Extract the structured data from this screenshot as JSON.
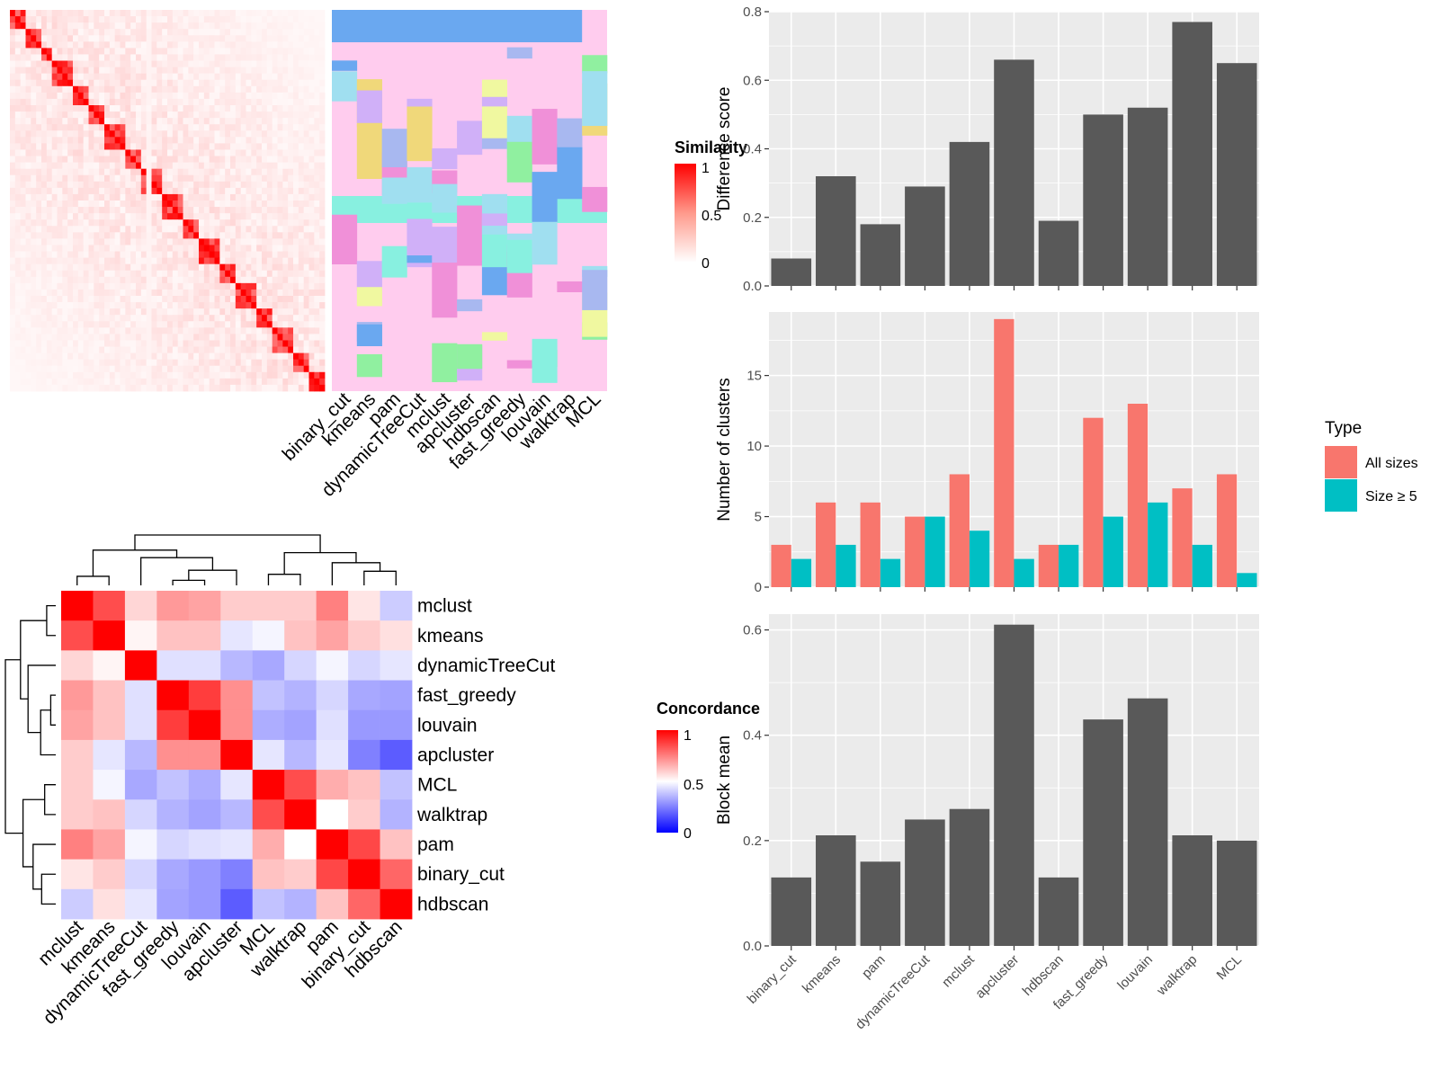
{
  "methods": [
    "binary_cut",
    "kmeans",
    "pam",
    "dynamicTreeCut",
    "mclust",
    "apcluster",
    "hdbscan",
    "fast_greedy",
    "louvain",
    "walktrap",
    "MCL"
  ],
  "colors": {
    "panel_bg": "#ebebeb",
    "grid": "#ffffff",
    "bar": "#595959",
    "all_sizes": "#f8766d",
    "size5": "#00bfc4",
    "similarity_high": "#ff0000",
    "concordance_low": "#0000ff",
    "label_bg": "#ffccee"
  },
  "similarity_legend": {
    "title": "Similarity",
    "ticks": [
      "1",
      "0.5",
      "0"
    ]
  },
  "concordance_legend": {
    "title": "Concordance",
    "ticks": [
      "1",
      "0.5",
      "0"
    ]
  },
  "concordance_order": [
    "mclust",
    "kmeans",
    "dynamicTreeCut",
    "fast_greedy",
    "louvain",
    "apcluster",
    "MCL",
    "walktrap",
    "pam",
    "binary_cut",
    "hdbscan"
  ],
  "concordance_matrix": [
    [
      1.0,
      0.85,
      0.58,
      0.7,
      0.68,
      0.6,
      0.6,
      0.6,
      0.75,
      0.55,
      0.4
    ],
    [
      0.85,
      1.0,
      0.52,
      0.62,
      0.62,
      0.45,
      0.48,
      0.62,
      0.68,
      0.6,
      0.56
    ],
    [
      0.58,
      0.52,
      1.0,
      0.44,
      0.44,
      0.36,
      0.33,
      0.42,
      0.48,
      0.42,
      0.45
    ],
    [
      0.7,
      0.62,
      0.44,
      1.0,
      0.88,
      0.72,
      0.38,
      0.35,
      0.42,
      0.33,
      0.32
    ],
    [
      0.68,
      0.62,
      0.44,
      0.88,
      1.0,
      0.72,
      0.34,
      0.32,
      0.44,
      0.3,
      0.3
    ],
    [
      0.6,
      0.45,
      0.36,
      0.72,
      0.72,
      1.0,
      0.45,
      0.36,
      0.45,
      0.25,
      0.18
    ],
    [
      0.6,
      0.48,
      0.33,
      0.38,
      0.34,
      0.45,
      1.0,
      0.85,
      0.66,
      0.62,
      0.38
    ],
    [
      0.6,
      0.62,
      0.42,
      0.35,
      0.32,
      0.36,
      0.85,
      1.0,
      0.5,
      0.6,
      0.35
    ],
    [
      0.75,
      0.68,
      0.48,
      0.42,
      0.44,
      0.45,
      0.66,
      0.5,
      1.0,
      0.86,
      0.62
    ],
    [
      0.55,
      0.6,
      0.42,
      0.33,
      0.3,
      0.25,
      0.62,
      0.6,
      0.86,
      1.0,
      0.8
    ],
    [
      0.4,
      0.56,
      0.45,
      0.32,
      0.3,
      0.18,
      0.38,
      0.35,
      0.62,
      0.8,
      1.0
    ]
  ],
  "chart_data": [
    {
      "type": "heatmap",
      "name": "similarity matrix with cluster labels",
      "legend": "Similarity",
      "columns": [
        "binary_cut",
        "kmeans",
        "pam",
        "dynamicTreeCut",
        "mclust",
        "apcluster",
        "hdbscan",
        "fast_greedy",
        "louvain",
        "walktrap",
        "MCL"
      ],
      "range": [
        0,
        1
      ]
    },
    {
      "type": "heatmap",
      "name": "concordance",
      "legend": "Concordance",
      "categories": [
        "mclust",
        "kmeans",
        "dynamicTreeCut",
        "fast_greedy",
        "louvain",
        "apcluster",
        "MCL",
        "walktrap",
        "pam",
        "binary_cut",
        "hdbscan"
      ],
      "range": [
        0,
        1
      ]
    },
    {
      "type": "bar",
      "categories": [
        "binary_cut",
        "kmeans",
        "pam",
        "dynamicTreeCut",
        "mclust",
        "apcluster",
        "hdbscan",
        "fast_greedy",
        "louvain",
        "walktrap",
        "MCL"
      ],
      "values": [
        0.08,
        0.32,
        0.18,
        0.29,
        0.42,
        0.66,
        0.19,
        0.5,
        0.52,
        0.77,
        0.65
      ],
      "ylabel": "Difference score",
      "ylim": [
        0,
        0.8
      ],
      "yticks": [
        "0.0",
        "0.2",
        "0.4",
        "0.6",
        "0.8"
      ],
      "grid": true
    },
    {
      "type": "bar",
      "categories": [
        "binary_cut",
        "kmeans",
        "pam",
        "dynamicTreeCut",
        "mclust",
        "apcluster",
        "hdbscan",
        "fast_greedy",
        "louvain",
        "walktrap",
        "MCL"
      ],
      "series": [
        {
          "name": "All sizes",
          "values": [
            3,
            6,
            6,
            5,
            8,
            19,
            3,
            12,
            13,
            7,
            8
          ]
        },
        {
          "name": "Size ≥ 5",
          "values": [
            2,
            3,
            2,
            5,
            4,
            2,
            3,
            5,
            6,
            3,
            1
          ]
        }
      ],
      "ylabel": "Number of clusters",
      "ylim": [
        0,
        19.5
      ],
      "yticks": [
        "0",
        "5",
        "10",
        "15"
      ],
      "legend_title": "Type",
      "legend_position": "right",
      "grid": true
    },
    {
      "type": "bar",
      "categories": [
        "binary_cut",
        "kmeans",
        "pam",
        "dynamicTreeCut",
        "mclust",
        "apcluster",
        "hdbscan",
        "fast_greedy",
        "louvain",
        "walktrap",
        "MCL"
      ],
      "values": [
        0.13,
        0.21,
        0.16,
        0.24,
        0.26,
        0.61,
        0.13,
        0.43,
        0.47,
        0.21,
        0.2
      ],
      "ylabel": "Block mean",
      "ylim": [
        0,
        0.63
      ],
      "yticks": [
        "0.0",
        "0.2",
        "0.4",
        "0.6"
      ],
      "grid": true
    }
  ]
}
